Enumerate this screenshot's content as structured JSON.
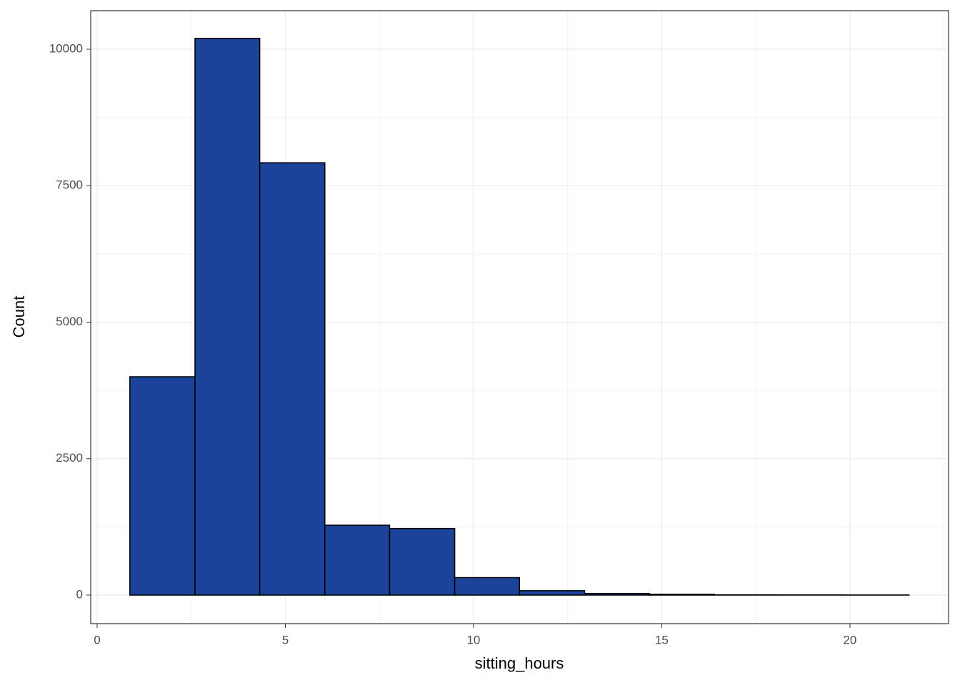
{
  "chart_data": {
    "type": "histogram",
    "x_label": "sitting_hours",
    "y_label": "Count",
    "bins": [
      0.87,
      2.6,
      4.32,
      6.05,
      7.77,
      9.5,
      11.22,
      12.95,
      14.67,
      16.4,
      18.12,
      19.85,
      21.57
    ],
    "values": [
      4000,
      10200,
      7920,
      1280,
      1220,
      320,
      80,
      30,
      15,
      5,
      3,
      2
    ],
    "color": "#1a4399",
    "edge_color": "#000000",
    "xlim": [
      -0.17,
      22.62
    ],
    "xticks": [
      0,
      5,
      10,
      15,
      20
    ],
    "ylim": [
      -523,
      10706
    ],
    "yticks": [
      0,
      2500,
      5000,
      7500,
      10000
    ],
    "grid": true
  }
}
